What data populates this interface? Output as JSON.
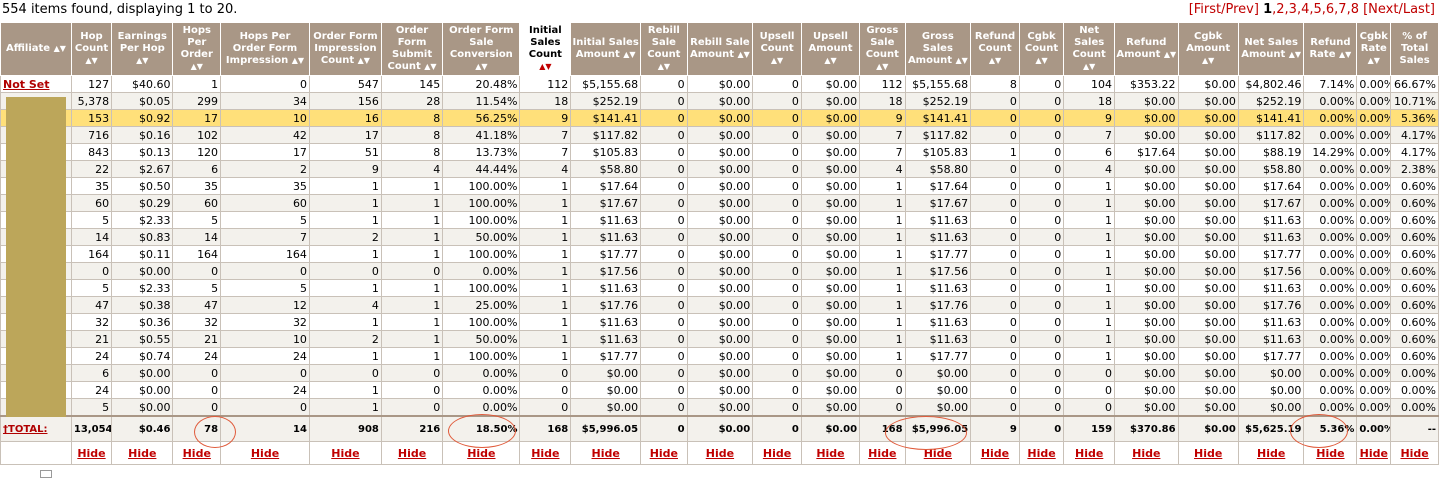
{
  "summary": "554 items found, displaying 1 to 20.",
  "pager": {
    "prefix": "[First/Prev]",
    "current": "1",
    "pages": [
      "2",
      "3",
      "4",
      "5",
      "6",
      "7",
      "8"
    ],
    "suffix": "[Next/Last]"
  },
  "columns": [
    {
      "label": "Affiliate",
      "arrow": "▲▼"
    },
    {
      "label": "Hop Count",
      "arrow": "▲▼"
    },
    {
      "label": "Earnings Per Hop",
      "arrow": "▲▼"
    },
    {
      "label": "Hops Per Order",
      "arrow": "▲▼"
    },
    {
      "label": "Hops Per Order Form Impression",
      "arrow": "▲▼"
    },
    {
      "label": "Order Form Impression Count",
      "arrow": "▲▼"
    },
    {
      "label": "Order Form Submit Count",
      "arrow": "▲▼"
    },
    {
      "label": "Order Form Sale Conversion",
      "arrow": "▲▼"
    },
    {
      "label": "Initial Sales Count",
      "arrow": "▲▼"
    },
    {
      "label": "Initial Sales Amount",
      "arrow": "▲▼"
    },
    {
      "label": "Rebill Sale Count",
      "arrow": "▲▼"
    },
    {
      "label": "Rebill Sale Amount",
      "arrow": "▲▼"
    },
    {
      "label": "Upsell Count",
      "arrow": "▲▼"
    },
    {
      "label": "Upsell Amount",
      "arrow": "▲▼"
    },
    {
      "label": "Gross Sale Count",
      "arrow": "▲▼"
    },
    {
      "label": "Gross Sales Amount",
      "arrow": "▲▼"
    },
    {
      "label": "Refund Count",
      "arrow": "▲▼"
    },
    {
      "label": "Cgbk Count",
      "arrow": "▲▼"
    },
    {
      "label": "Net Sales Count",
      "arrow": "▲▼"
    },
    {
      "label": "Refund Amount",
      "arrow": "▲▼"
    },
    {
      "label": "Cgbk Amount",
      "arrow": "▲▼"
    },
    {
      "label": "Net Sales Amount",
      "arrow": "▲▼"
    },
    {
      "label": "Refund Rate",
      "arrow": "▲▼"
    },
    {
      "label": "Cgbk Rate",
      "arrow": "▲▼"
    },
    {
      "label": "% of Total Sales",
      "arrow": ""
    }
  ],
  "rows": [
    [
      "Not Set",
      "127",
      "$40.60",
      "1",
      "0",
      "547",
      "145",
      "20.48%",
      "112",
      "$5,155.68",
      "0",
      "$0.00",
      "0",
      "$0.00",
      "112",
      "$5,155.68",
      "8",
      "0",
      "104",
      "$353.22",
      "$0.00",
      "$4,802.46",
      "7.14%",
      "0.00%",
      "66.67%"
    ],
    [
      "",
      "5,378",
      "$0.05",
      "299",
      "34",
      "156",
      "28",
      "11.54%",
      "18",
      "$252.19",
      "0",
      "$0.00",
      "0",
      "$0.00",
      "18",
      "$252.19",
      "0",
      "0",
      "18",
      "$0.00",
      "$0.00",
      "$252.19",
      "0.00%",
      "0.00%",
      "10.71%"
    ],
    [
      "",
      "153",
      "$0.92",
      "17",
      "10",
      "16",
      "8",
      "56.25%",
      "9",
      "$141.41",
      "0",
      "$0.00",
      "0",
      "$0.00",
      "9",
      "$141.41",
      "0",
      "0",
      "9",
      "$0.00",
      "$0.00",
      "$141.41",
      "0.00%",
      "0.00%",
      "5.36%"
    ],
    [
      "",
      "716",
      "$0.16",
      "102",
      "42",
      "17",
      "8",
      "41.18%",
      "7",
      "$117.82",
      "0",
      "$0.00",
      "0",
      "$0.00",
      "7",
      "$117.82",
      "0",
      "0",
      "7",
      "$0.00",
      "$0.00",
      "$117.82",
      "0.00%",
      "0.00%",
      "4.17%"
    ],
    [
      "",
      "843",
      "$0.13",
      "120",
      "17",
      "51",
      "8",
      "13.73%",
      "7",
      "$105.83",
      "0",
      "$0.00",
      "0",
      "$0.00",
      "7",
      "$105.83",
      "1",
      "0",
      "6",
      "$17.64",
      "$0.00",
      "$88.19",
      "14.29%",
      "0.00%",
      "4.17%"
    ],
    [
      "",
      "22",
      "$2.67",
      "6",
      "2",
      "9",
      "4",
      "44.44%",
      "4",
      "$58.80",
      "0",
      "$0.00",
      "0",
      "$0.00",
      "4",
      "$58.80",
      "0",
      "0",
      "4",
      "$0.00",
      "$0.00",
      "$58.80",
      "0.00%",
      "0.00%",
      "2.38%"
    ],
    [
      "",
      "35",
      "$0.50",
      "35",
      "35",
      "1",
      "1",
      "100.00%",
      "1",
      "$17.64",
      "0",
      "$0.00",
      "0",
      "$0.00",
      "1",
      "$17.64",
      "0",
      "0",
      "1",
      "$0.00",
      "$0.00",
      "$17.64",
      "0.00%",
      "0.00%",
      "0.60%"
    ],
    [
      "",
      "60",
      "$0.29",
      "60",
      "60",
      "1",
      "1",
      "100.00%",
      "1",
      "$17.67",
      "0",
      "$0.00",
      "0",
      "$0.00",
      "1",
      "$17.67",
      "0",
      "0",
      "1",
      "$0.00",
      "$0.00",
      "$17.67",
      "0.00%",
      "0.00%",
      "0.60%"
    ],
    [
      "",
      "5",
      "$2.33",
      "5",
      "5",
      "1",
      "1",
      "100.00%",
      "1",
      "$11.63",
      "0",
      "$0.00",
      "0",
      "$0.00",
      "1",
      "$11.63",
      "0",
      "0",
      "1",
      "$0.00",
      "$0.00",
      "$11.63",
      "0.00%",
      "0.00%",
      "0.60%"
    ],
    [
      "",
      "14",
      "$0.83",
      "14",
      "7",
      "2",
      "1",
      "50.00%",
      "1",
      "$11.63",
      "0",
      "$0.00",
      "0",
      "$0.00",
      "1",
      "$11.63",
      "0",
      "0",
      "1",
      "$0.00",
      "$0.00",
      "$11.63",
      "0.00%",
      "0.00%",
      "0.60%"
    ],
    [
      "",
      "164",
      "$0.11",
      "164",
      "164",
      "1",
      "1",
      "100.00%",
      "1",
      "$17.77",
      "0",
      "$0.00",
      "0",
      "$0.00",
      "1",
      "$17.77",
      "0",
      "0",
      "1",
      "$0.00",
      "$0.00",
      "$17.77",
      "0.00%",
      "0.00%",
      "0.60%"
    ],
    [
      "",
      "0",
      "$0.00",
      "0",
      "0",
      "0",
      "0",
      "0.00%",
      "1",
      "$17.56",
      "0",
      "$0.00",
      "0",
      "$0.00",
      "1",
      "$17.56",
      "0",
      "0",
      "1",
      "$0.00",
      "$0.00",
      "$17.56",
      "0.00%",
      "0.00%",
      "0.60%"
    ],
    [
      "",
      "5",
      "$2.33",
      "5",
      "5",
      "1",
      "1",
      "100.00%",
      "1",
      "$11.63",
      "0",
      "$0.00",
      "0",
      "$0.00",
      "1",
      "$11.63",
      "0",
      "0",
      "1",
      "$0.00",
      "$0.00",
      "$11.63",
      "0.00%",
      "0.00%",
      "0.60%"
    ],
    [
      "",
      "47",
      "$0.38",
      "47",
      "12",
      "4",
      "1",
      "25.00%",
      "1",
      "$17.76",
      "0",
      "$0.00",
      "0",
      "$0.00",
      "1",
      "$17.76",
      "0",
      "0",
      "1",
      "$0.00",
      "$0.00",
      "$17.76",
      "0.00%",
      "0.00%",
      "0.60%"
    ],
    [
      "",
      "32",
      "$0.36",
      "32",
      "32",
      "1",
      "1",
      "100.00%",
      "1",
      "$11.63",
      "0",
      "$0.00",
      "0",
      "$0.00",
      "1",
      "$11.63",
      "0",
      "0",
      "1",
      "$0.00",
      "$0.00",
      "$11.63",
      "0.00%",
      "0.00%",
      "0.60%"
    ],
    [
      "",
      "21",
      "$0.55",
      "21",
      "10",
      "2",
      "1",
      "50.00%",
      "1",
      "$11.63",
      "0",
      "$0.00",
      "0",
      "$0.00",
      "1",
      "$11.63",
      "0",
      "0",
      "1",
      "$0.00",
      "$0.00",
      "$11.63",
      "0.00%",
      "0.00%",
      "0.60%"
    ],
    [
      "",
      "24",
      "$0.74",
      "24",
      "24",
      "1",
      "1",
      "100.00%",
      "1",
      "$17.77",
      "0",
      "$0.00",
      "0",
      "$0.00",
      "1",
      "$17.77",
      "0",
      "0",
      "1",
      "$0.00",
      "$0.00",
      "$17.77",
      "0.00%",
      "0.00%",
      "0.60%"
    ],
    [
      "",
      "6",
      "$0.00",
      "0",
      "0",
      "0",
      "0",
      "0.00%",
      "0",
      "$0.00",
      "0",
      "$0.00",
      "0",
      "$0.00",
      "0",
      "$0.00",
      "0",
      "0",
      "0",
      "$0.00",
      "$0.00",
      "$0.00",
      "0.00%",
      "0.00%",
      "0.00%"
    ],
    [
      "",
      "24",
      "$0.00",
      "0",
      "24",
      "1",
      "0",
      "0.00%",
      "0",
      "$0.00",
      "0",
      "$0.00",
      "0",
      "$0.00",
      "0",
      "$0.00",
      "0",
      "0",
      "0",
      "$0.00",
      "$0.00",
      "$0.00",
      "0.00%",
      "0.00%",
      "0.00%"
    ],
    [
      "",
      "5",
      "$0.00",
      "0",
      "0",
      "1",
      "0",
      "0.00%",
      "0",
      "$0.00",
      "0",
      "$0.00",
      "0",
      "$0.00",
      "0",
      "$0.00",
      "0",
      "0",
      "0",
      "$0.00",
      "$0.00",
      "$0.00",
      "0.00%",
      "0.00%",
      "0.00%"
    ]
  ],
  "highlight_row": 2,
  "total": [
    "†TOTAL:",
    "13,054",
    "$0.46",
    "78",
    "14",
    "908",
    "216",
    "18.50%",
    "168",
    "$5,996.05",
    "0",
    "$0.00",
    "0",
    "$0.00",
    "168",
    "$5,996.05",
    "9",
    "0",
    "159",
    "$370.86",
    "$0.00",
    "$5,625.19",
    "5.36%",
    "0.00%",
    "--"
  ],
  "hide_label": "Hide",
  "colors": {
    "header": "#a99786",
    "highlight": "#ffe07a",
    "link": "#c00000",
    "annotation": "#e05a3a"
  }
}
